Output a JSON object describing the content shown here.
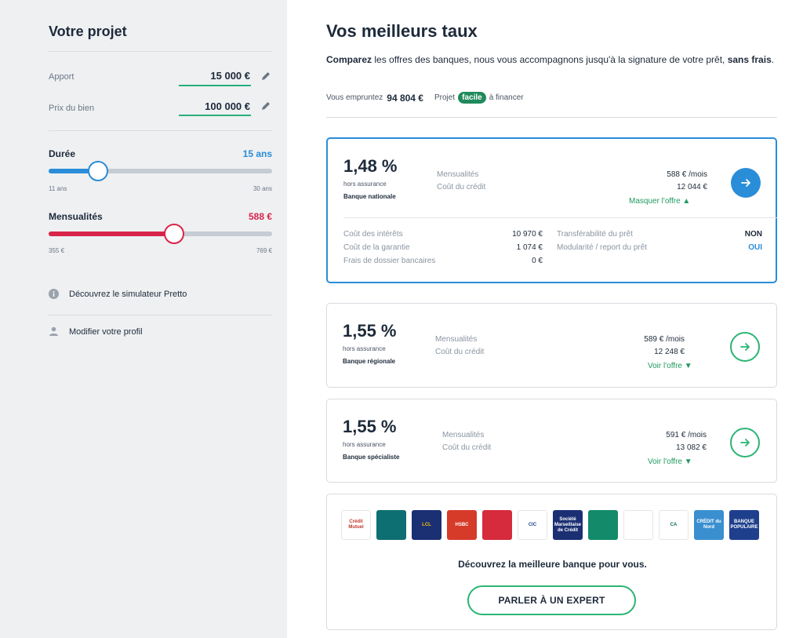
{
  "sidebar": {
    "title": "Votre projet",
    "apport": {
      "label": "Apport",
      "value": "15 000 €"
    },
    "prix": {
      "label": "Prix du bien",
      "value": "100 000 €"
    },
    "duree": {
      "label": "Durée",
      "value": "15 ans",
      "min": "11 ans",
      "max": "30 ans",
      "fraction": 0.22,
      "color": "#2a8dd8"
    },
    "mensualites": {
      "label": "Mensualités",
      "value": "588 €",
      "min": "355 €",
      "max": "769 €",
      "fraction": 0.56,
      "color": "#d9244a"
    },
    "links": {
      "simulator": "Découvrez le simulateur Pretto",
      "profile": "Modifier votre profil"
    }
  },
  "main": {
    "title": "Vos meilleurs taux",
    "intro": {
      "bold1": "Comparez",
      "text1": " les offres des banques, nous vous accompagnons jusqu'à la signature de votre prêt, ",
      "bold2": "sans frais",
      "text2": "."
    },
    "borrow": {
      "label": "Vous empruntez",
      "amount": "94 804 €",
      "projet": "Projet",
      "badge": "facile",
      "suffix": "à financer"
    }
  },
  "offers": [
    {
      "rate": "1,48 %",
      "hors": "hors assurance",
      "bank": "Banque nationale",
      "mens_label": "Mensualités",
      "cout_label": "Coût du crédit",
      "mens_value": "588 € /mois",
      "cout_value": "12 044 €",
      "toggle": "Masquer l'offre ▲"
    },
    {
      "rate": "1,55 %",
      "hors": "hors assurance",
      "bank": "Banque régionale",
      "mens_label": "Mensualités",
      "cout_label": "Coût du crédit",
      "mens_value": "589 € /mois",
      "cout_value": "12 248 €",
      "toggle": "Voir l'offre ▼"
    },
    {
      "rate": "1,55 %",
      "hors": "hors assurance",
      "bank": "Banque spécialiste",
      "mens_label": "Mensualités",
      "cout_label": "Coût du crédit",
      "mens_value": "591 € /mois",
      "cout_value": "13 082 €",
      "toggle": "Voir l'offre ▼"
    }
  ],
  "details": {
    "interets": {
      "label": "Coût des intérêts",
      "value": "10 970 €"
    },
    "garantie": {
      "label": "Coût de la garantie",
      "value": "1 074 €"
    },
    "dossier": {
      "label": "Frais de dossier bancaires",
      "value": "0 €"
    },
    "transfer": {
      "label": "Transférabilité du prêt",
      "value": "NON"
    },
    "modul": {
      "label": "Modularité / report du prêt",
      "value": "OUI"
    }
  },
  "banks_panel": {
    "logos": [
      {
        "name": "credit-mutuel-logo",
        "text": "Crédit Mutuel",
        "bg": "#ffffff",
        "fg": "#c0392b"
      },
      {
        "name": "caisse-epargne-logo",
        "text": "",
        "bg": "#0e6f72",
        "fg": "#ffffff"
      },
      {
        "name": "lcl-logo",
        "text": "LCL",
        "bg": "#1b2f73",
        "fg": "#f1c40f"
      },
      {
        "name": "hsbc-logo",
        "text": "HSBC",
        "bg": "#d63b2a",
        "fg": "#ffffff"
      },
      {
        "name": "credit-agricole-red-logo",
        "text": "",
        "bg": "#d62b3c",
        "fg": "#ffffff"
      },
      {
        "name": "cic-logo",
        "text": "CIC",
        "bg": "#ffffff",
        "fg": "#1e3f8c"
      },
      {
        "name": "societe-marseillaise-logo",
        "text": "Société Marseillaise de Crédit",
        "bg": "#1b2f73",
        "fg": "#ffffff"
      },
      {
        "name": "bnp-paribas-logo",
        "text": "",
        "bg": "#138a6a",
        "fg": "#ffffff"
      },
      {
        "name": "societe-generale-logo",
        "text": "",
        "bg": "#ffffff",
        "fg": "#e60028"
      },
      {
        "name": "credit-agricole-logo",
        "text": "CA",
        "bg": "#ffffff",
        "fg": "#0f6b5a"
      },
      {
        "name": "credit-du-nord-logo",
        "text": "CRÉDIT du Nord",
        "bg": "#3a8fd0",
        "fg": "#ffffff"
      },
      {
        "name": "banque-populaire-logo",
        "text": "BANQUE POPULAIRE",
        "bg": "#1e3f8c",
        "fg": "#ffffff"
      }
    ],
    "text": "Découvrez la meilleure banque pour vous.",
    "button": "PARLER À UN EXPERT"
  }
}
